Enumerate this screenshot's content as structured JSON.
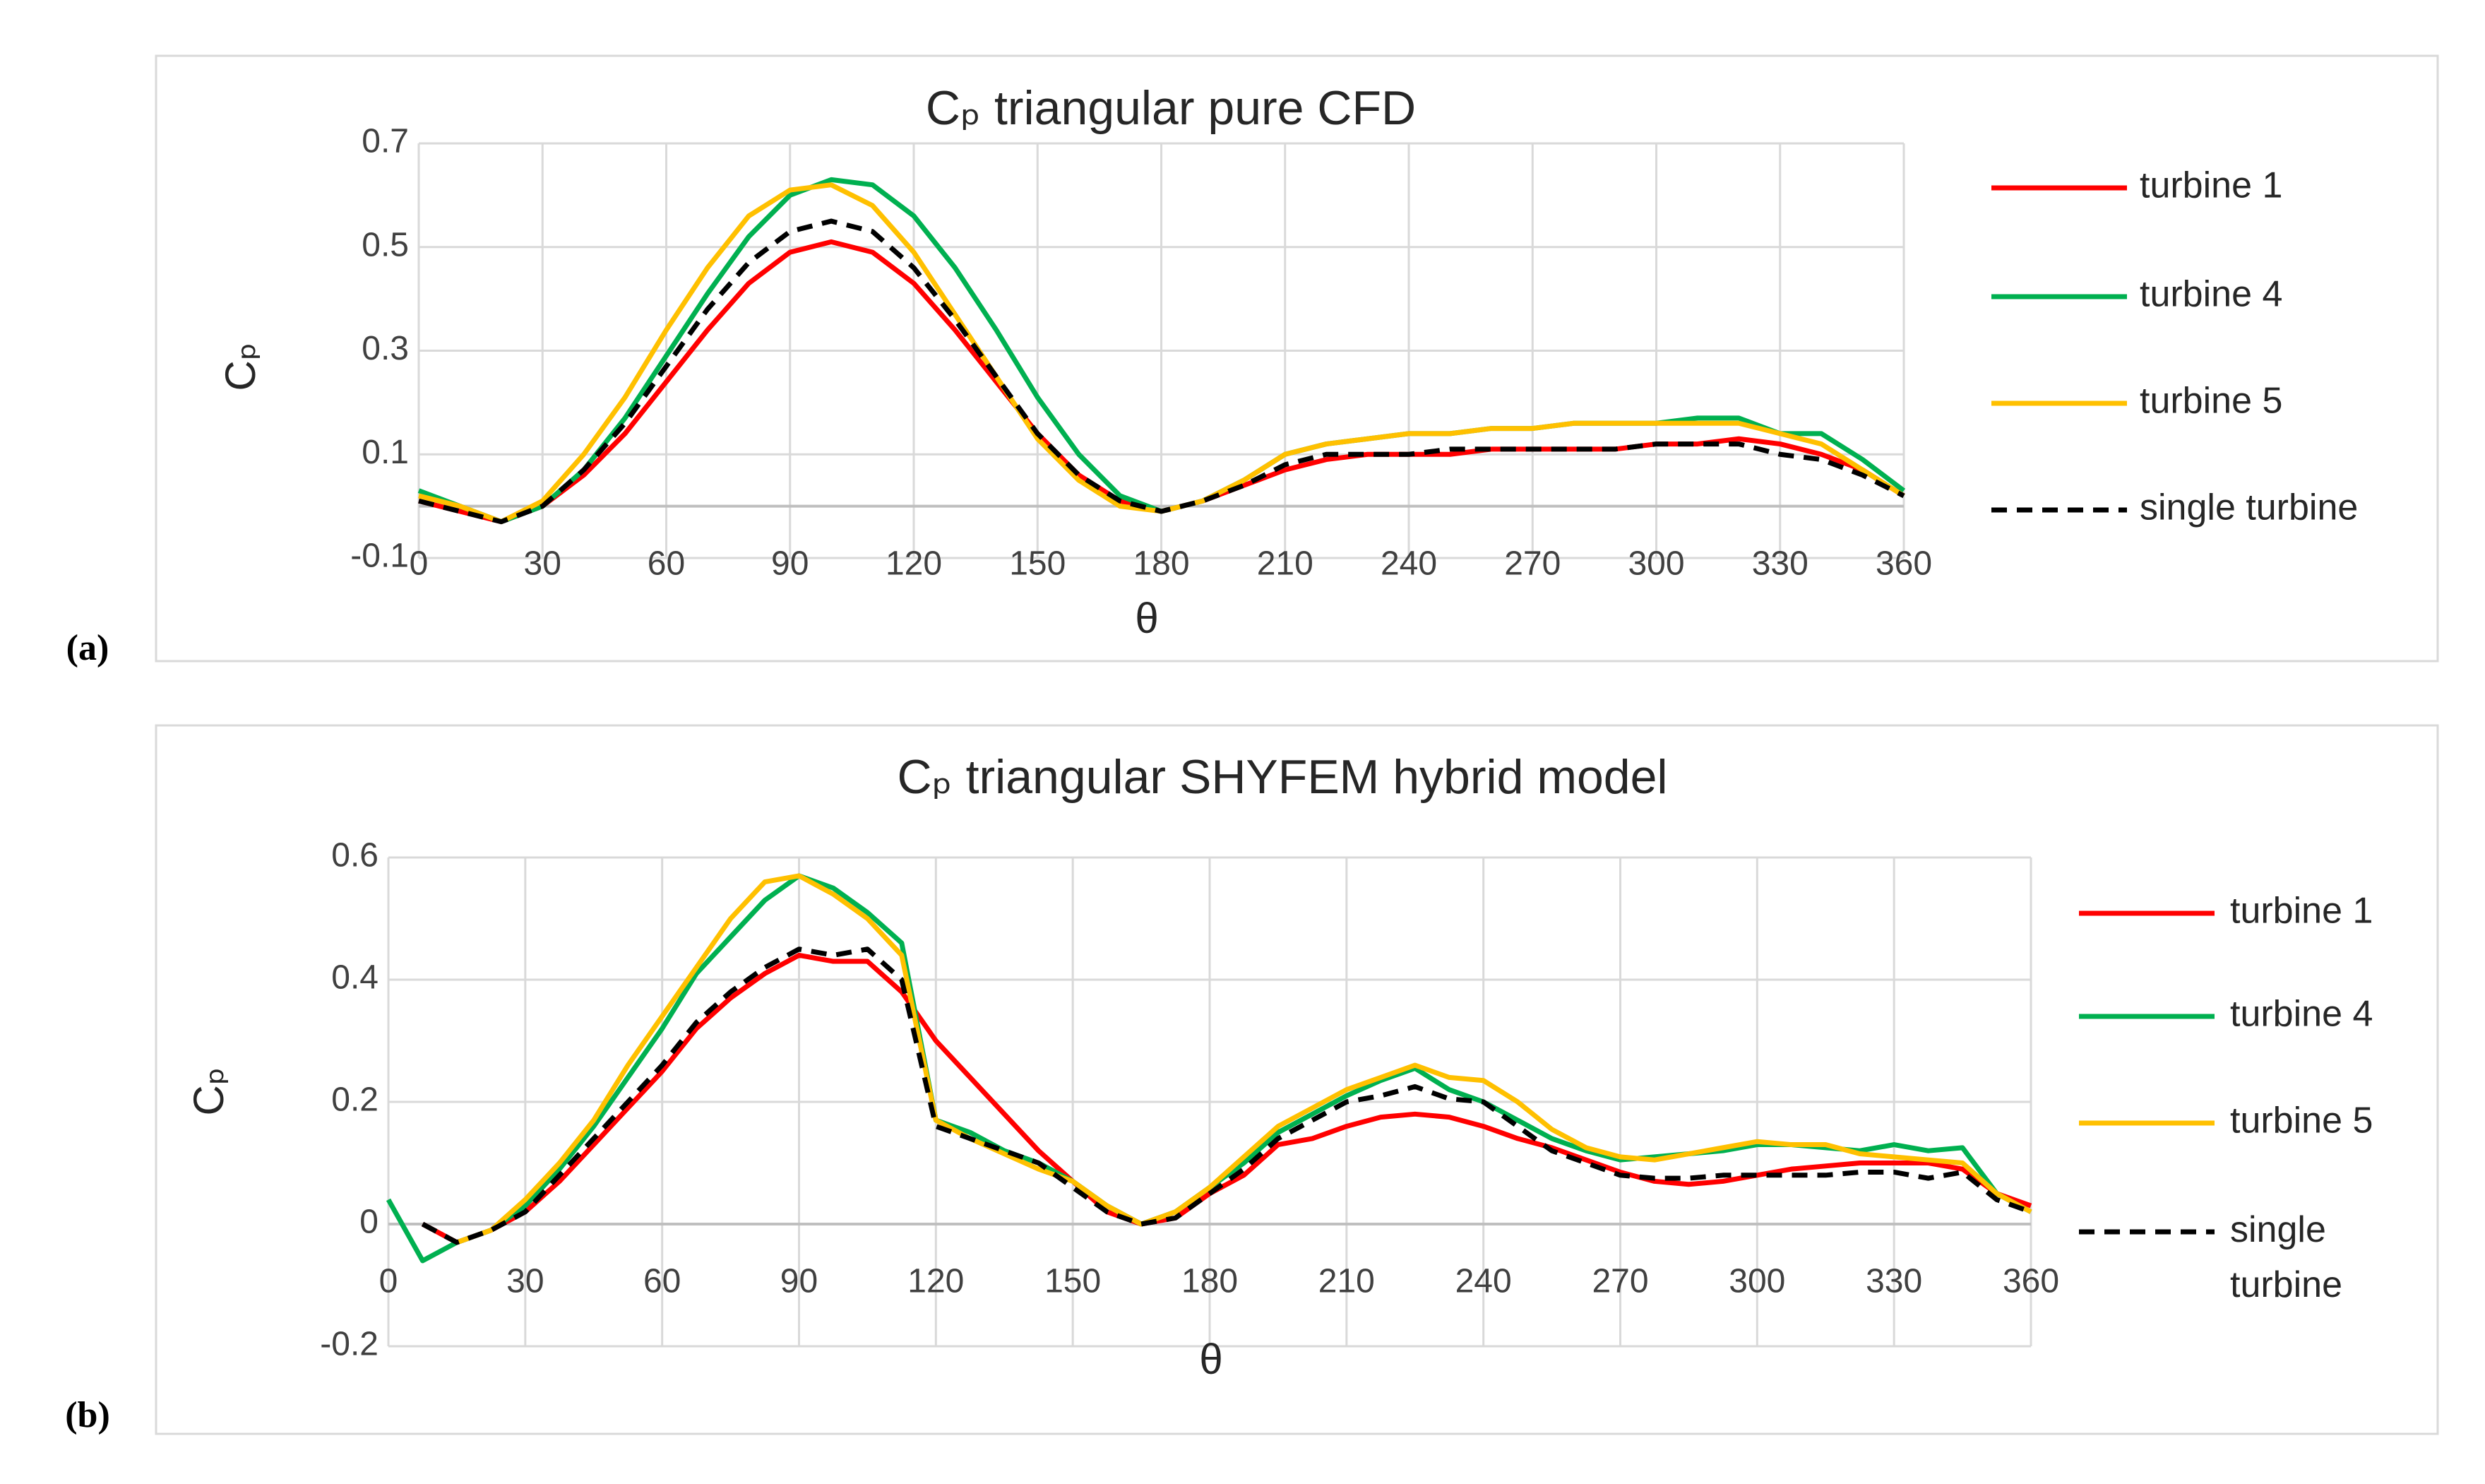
{
  "chart_data": [
    {
      "type": "line",
      "panel_label": "(a)",
      "title": "Cₚ triangular pure CFD",
      "x_label": "θ",
      "y_label": "Cₚ",
      "x": [
        0,
        10,
        20,
        30,
        40,
        50,
        60,
        70,
        80,
        90,
        100,
        110,
        120,
        130,
        140,
        150,
        160,
        170,
        180,
        190,
        200,
        210,
        220,
        230,
        240,
        250,
        260,
        270,
        280,
        290,
        300,
        310,
        320,
        330,
        340,
        350,
        360
      ],
      "xlim": [
        0,
        360
      ],
      "xticks": [
        0,
        30,
        60,
        90,
        120,
        150,
        180,
        210,
        240,
        270,
        300,
        330,
        360
      ],
      "ylim": [
        -0.1,
        0.7
      ],
      "yticks": [
        -0.1,
        0.1,
        0.3,
        0.5,
        0.7
      ],
      "grid": true,
      "legend": "right",
      "series": [
        {
          "name": "turbine 1",
          "color": "#ff0000",
          "values": [
            0.01,
            -0.01,
            -0.03,
            0.0,
            0.06,
            0.14,
            0.24,
            0.34,
            0.43,
            0.49,
            0.51,
            0.49,
            0.43,
            0.34,
            0.24,
            0.14,
            0.06,
            0.01,
            -0.01,
            0.01,
            0.04,
            0.07,
            0.09,
            0.1,
            0.1,
            0.1,
            0.11,
            0.11,
            0.11,
            0.11,
            0.12,
            0.12,
            0.13,
            0.12,
            0.1,
            0.07,
            0.02
          ]
        },
        {
          "name": "turbine 4",
          "color": "#00b050",
          "values": [
            0.03,
            0.0,
            -0.03,
            0.0,
            0.07,
            0.17,
            0.29,
            0.41,
            0.52,
            0.6,
            0.63,
            0.62,
            0.56,
            0.46,
            0.34,
            0.21,
            0.1,
            0.02,
            -0.01,
            0.01,
            0.05,
            0.1,
            0.12,
            0.13,
            0.14,
            0.14,
            0.15,
            0.15,
            0.16,
            0.16,
            0.16,
            0.17,
            0.17,
            0.14,
            0.14,
            0.09,
            0.03
          ]
        },
        {
          "name": "turbine 5",
          "color": "#ffc000",
          "values": [
            0.02,
            0.0,
            -0.03,
            0.01,
            0.1,
            0.21,
            0.34,
            0.46,
            0.56,
            0.61,
            0.62,
            0.58,
            0.49,
            0.37,
            0.25,
            0.13,
            0.05,
            0.0,
            -0.01,
            0.01,
            0.05,
            0.1,
            0.12,
            0.13,
            0.14,
            0.14,
            0.15,
            0.15,
            0.16,
            0.16,
            0.16,
            0.16,
            0.16,
            0.14,
            0.12,
            0.07,
            0.02
          ]
        },
        {
          "name": "single turbine",
          "color": "#000000",
          "dashed": true,
          "values": [
            0.01,
            -0.01,
            -0.03,
            0.0,
            0.07,
            0.16,
            0.27,
            0.38,
            0.47,
            0.53,
            0.55,
            0.53,
            0.46,
            0.36,
            0.25,
            0.14,
            0.06,
            0.01,
            -0.01,
            0.01,
            0.04,
            0.08,
            0.1,
            0.1,
            0.1,
            0.11,
            0.11,
            0.11,
            0.11,
            0.11,
            0.12,
            0.12,
            0.12,
            0.1,
            0.09,
            0.06,
            0.02
          ]
        }
      ]
    },
    {
      "type": "line",
      "panel_label": "(b)",
      "title": "Cₚ triangular SHYFEM hybrid model",
      "x_label": "θ",
      "y_label": "Cₚ",
      "x": [
        0,
        7.5,
        15,
        22.5,
        30,
        37.5,
        45,
        52.5,
        60,
        67.5,
        75,
        82.5,
        90,
        97.5,
        105,
        112.5,
        120,
        127.5,
        135,
        142.5,
        150,
        157.5,
        165,
        172.5,
        180,
        187.5,
        195,
        202.5,
        210,
        217.5,
        225,
        232.5,
        240,
        247.5,
        255,
        262.5,
        270,
        277.5,
        285,
        292.5,
        300,
        307.5,
        315,
        322.5,
        330,
        337.5,
        345,
        352.5,
        360
      ],
      "xlim": [
        0,
        360
      ],
      "xticks": [
        0,
        30,
        60,
        90,
        120,
        150,
        180,
        210,
        240,
        270,
        300,
        330,
        360
      ],
      "ylim": [
        -0.2,
        0.6
      ],
      "yticks": [
        -0.2,
        0,
        0.2,
        0.4,
        0.6
      ],
      "grid": true,
      "legend": "right",
      "series": [
        {
          "name": "turbine 1",
          "color": "#ff0000",
          "values": [
            null,
            0.0,
            -0.03,
            -0.01,
            0.02,
            0.07,
            0.13,
            0.19,
            0.25,
            0.32,
            0.37,
            0.41,
            0.44,
            0.43,
            0.43,
            0.38,
            0.3,
            0.24,
            0.18,
            0.12,
            0.07,
            0.02,
            0.0,
            0.01,
            0.05,
            0.08,
            0.13,
            0.14,
            0.16,
            0.175,
            0.18,
            0.175,
            0.16,
            0.14,
            0.125,
            0.105,
            0.085,
            0.07,
            0.065,
            0.07,
            0.08,
            0.09,
            0.095,
            0.1,
            0.1,
            0.1,
            0.09,
            0.05,
            0.03
          ]
        },
        {
          "name": "turbine 4",
          "color": "#00b050",
          "values": [
            0.04,
            -0.06,
            -0.03,
            -0.01,
            0.03,
            0.09,
            0.16,
            0.24,
            0.32,
            0.41,
            0.47,
            0.53,
            0.57,
            0.55,
            0.51,
            0.46,
            0.17,
            0.15,
            0.12,
            0.1,
            0.07,
            0.03,
            0.0,
            0.02,
            0.06,
            0.1,
            0.15,
            0.18,
            0.21,
            0.235,
            0.255,
            0.22,
            0.2,
            0.17,
            0.14,
            0.12,
            0.105,
            0.11,
            0.115,
            0.12,
            0.13,
            0.13,
            0.125,
            0.12,
            0.13,
            0.12,
            0.125,
            0.05,
            0.02
          ]
        },
        {
          "name": "turbine 5",
          "color": "#ffc000",
          "values": [
            null,
            null,
            -0.03,
            -0.01,
            0.04,
            0.1,
            0.17,
            0.26,
            0.34,
            0.42,
            0.5,
            0.56,
            0.57,
            0.54,
            0.5,
            0.44,
            0.17,
            0.14,
            0.115,
            0.09,
            0.07,
            0.03,
            0.0,
            0.02,
            0.06,
            0.11,
            0.16,
            0.19,
            0.22,
            0.24,
            0.26,
            0.24,
            0.235,
            0.2,
            0.155,
            0.125,
            0.11,
            0.105,
            0.115,
            0.125,
            0.135,
            0.13,
            0.13,
            0.115,
            0.11,
            0.105,
            0.1,
            0.05,
            0.02
          ]
        },
        {
          "name": "single turbine",
          "color": "#000000",
          "dashed": true,
          "values": [
            null,
            0.0,
            -0.03,
            -0.01,
            0.02,
            0.08,
            0.14,
            0.2,
            0.26,
            0.33,
            0.38,
            0.42,
            0.45,
            0.44,
            0.45,
            0.4,
            0.16,
            0.14,
            0.12,
            0.1,
            0.06,
            0.02,
            0.0,
            0.01,
            0.05,
            0.09,
            0.14,
            0.17,
            0.2,
            0.21,
            0.225,
            0.205,
            0.2,
            0.16,
            0.12,
            0.1,
            0.08,
            0.075,
            0.075,
            0.08,
            0.08,
            0.08,
            0.08,
            0.085,
            0.085,
            0.075,
            0.085,
            0.04,
            0.02
          ]
        }
      ]
    }
  ]
}
